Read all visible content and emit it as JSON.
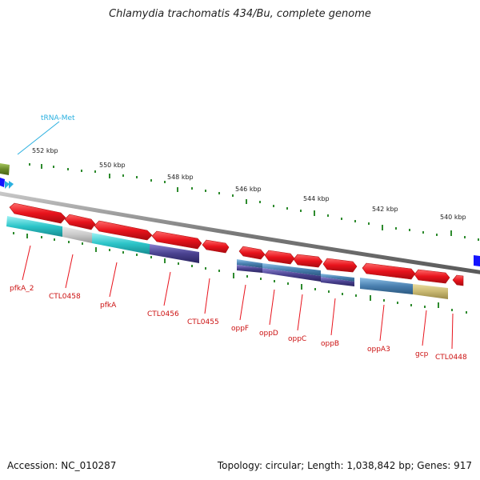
{
  "header": {
    "title": "Chlamydia trachomatis 434/Bu, complete genome"
  },
  "footer": {
    "accession": "Accession: NC_010287",
    "topology": "Topology: circular; Length: 1,038,842 bp; Genes: 917"
  },
  "colors": {
    "background": "#ffffff",
    "backbone": "#8c8c8c",
    "gene_red": "#e8131c",
    "gene_label": "#cc1111",
    "trna_label": "#2ab0e0",
    "cog_cyan": "#2cc4c8",
    "cog_grey": "#c8c8c8",
    "cog_purple": "#4a4290",
    "cog_steel": "#4a80b0",
    "cog_khaki": "#c8b870",
    "cog_olive": "#6a8a2a",
    "tick_green": "#2e8b2e",
    "tick_blue": "#1414ff"
  },
  "scale": {
    "unit": "kbp",
    "labels": [
      "552 kbp",
      "550 kbp",
      "548 kbp",
      "546 kbp",
      "544 kbp",
      "542 kbp",
      "540 kbp"
    ]
  },
  "trna": {
    "label": "tRNA-Met"
  },
  "genes": [
    {
      "label": "pfkA_2"
    },
    {
      "label": "CTL0458"
    },
    {
      "label": "pfkA"
    },
    {
      "label": "CTL0456"
    },
    {
      "label": "CTL0455"
    },
    {
      "label": "oppF"
    },
    {
      "label": "oppD"
    },
    {
      "label": "oppC"
    },
    {
      "label": "oppB"
    },
    {
      "label": "oppA3"
    },
    {
      "label": "gcp"
    },
    {
      "label": "CTL0448"
    }
  ]
}
